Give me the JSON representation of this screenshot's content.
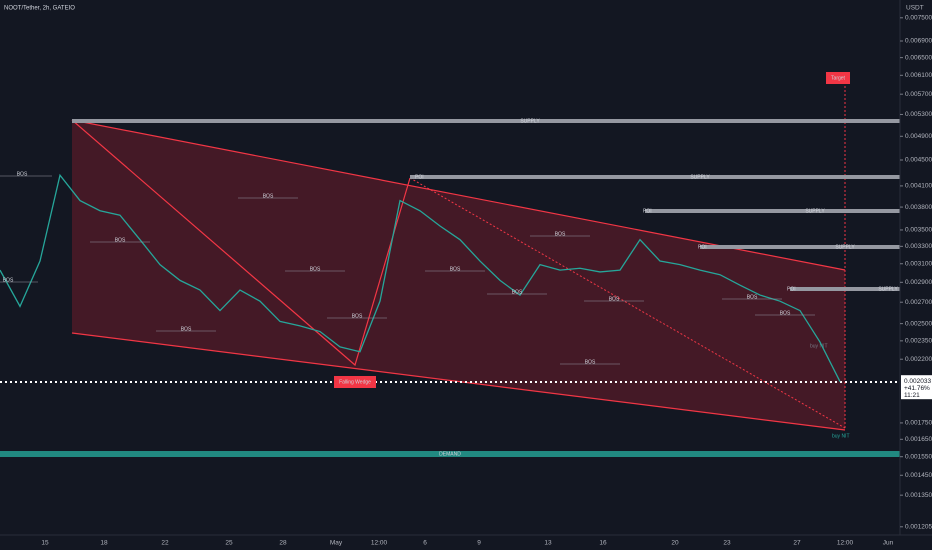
{
  "header": {
    "symbol": "NOOT/Tether, 2h, GATEIO",
    "currency": "USDT"
  },
  "price_axis": {
    "log": true,
    "ylim": [
      0.00117,
      0.007995
    ],
    "ticks": [
      {
        "value": 0.0075,
        "label": "0.007500"
      },
      {
        "value": 0.0069,
        "label": "0.006900"
      },
      {
        "value": 0.0065,
        "label": "0.006500"
      },
      {
        "value": 0.0061,
        "label": "0.006100"
      },
      {
        "value": 0.0057,
        "label": "0.005700"
      },
      {
        "value": 0.0053,
        "label": "0.005300"
      },
      {
        "value": 0.0049,
        "label": "0.004900"
      },
      {
        "value": 0.0045,
        "label": "0.004500"
      },
      {
        "value": 0.0041,
        "label": "0.004100"
      },
      {
        "value": 0.0038,
        "label": "0.003800"
      },
      {
        "value": 0.0035,
        "label": "0.003500"
      },
      {
        "value": 0.0033,
        "label": "0.003300"
      },
      {
        "value": 0.0031,
        "label": "0.003100"
      },
      {
        "value": 0.0029,
        "label": "0.002900"
      },
      {
        "value": 0.0027,
        "label": "0.002700"
      },
      {
        "value": 0.0025,
        "label": "0.002500"
      },
      {
        "value": 0.00235,
        "label": "0.002350"
      },
      {
        "value": 0.0022,
        "label": "0.002200"
      },
      {
        "value": 0.00175,
        "label": "0.001750"
      },
      {
        "value": 0.00165,
        "label": "0.001650"
      },
      {
        "value": 0.00155,
        "label": "0.001550"
      },
      {
        "value": 0.00145,
        "label": "0.001450"
      },
      {
        "value": 0.00135,
        "label": "0.001350"
      },
      {
        "value": 0.001205,
        "label": "0.001205"
      }
    ],
    "current": {
      "value": 0.002033,
      "label": "0.002033",
      "change": "+41.76%",
      "countdown": "11:21"
    }
  },
  "time_axis": [
    "15",
    "18",
    "22",
    "25",
    "28",
    "May",
    "12:00",
    "6",
    "9",
    "13",
    "16",
    "20",
    "23",
    "27",
    "12:00",
    "Jun"
  ],
  "closes": [
    0.00303,
    0.00266,
    0.00313,
    0.00426,
    0.00389,
    0.00375,
    0.00369,
    0.00338,
    0.00309,
    0.00292,
    0.00282,
    0.00262,
    0.00282,
    0.00271,
    0.00252,
    0.00248,
    0.00243,
    0.0023,
    0.00226,
    0.00271,
    0.00389,
    0.00375,
    0.00355,
    0.00338,
    0.00313,
    0.00292,
    0.00277,
    0.00309,
    0.00303,
    0.00305,
    0.00301,
    0.00303,
    0.00338,
    0.00313,
    0.00309,
    0.00303,
    0.00298,
    0.00287,
    0.00277,
    0.00271,
    0.00262,
    0.00234,
    0.00203
  ],
  "annotations": {
    "supply": [
      "SUPPLY",
      "SUPPLY",
      "SUPPLY",
      "SUPPLY",
      "SUPPLY"
    ],
    "demand": "DEMAND",
    "target": "Target",
    "wedge": "Falling Wedge",
    "poi": [
      "POI",
      "POI",
      "POI",
      "POI"
    ],
    "buy": [
      "buy NIT",
      "buy NIT"
    ],
    "bos": [
      "BOS",
      "BOS",
      "BOS",
      "BOS",
      "BOS",
      "BOS",
      "BOS",
      "BOS",
      "BOS",
      "BOS",
      "BOS",
      "BOS",
      "BOS",
      "BOS"
    ]
  }
}
